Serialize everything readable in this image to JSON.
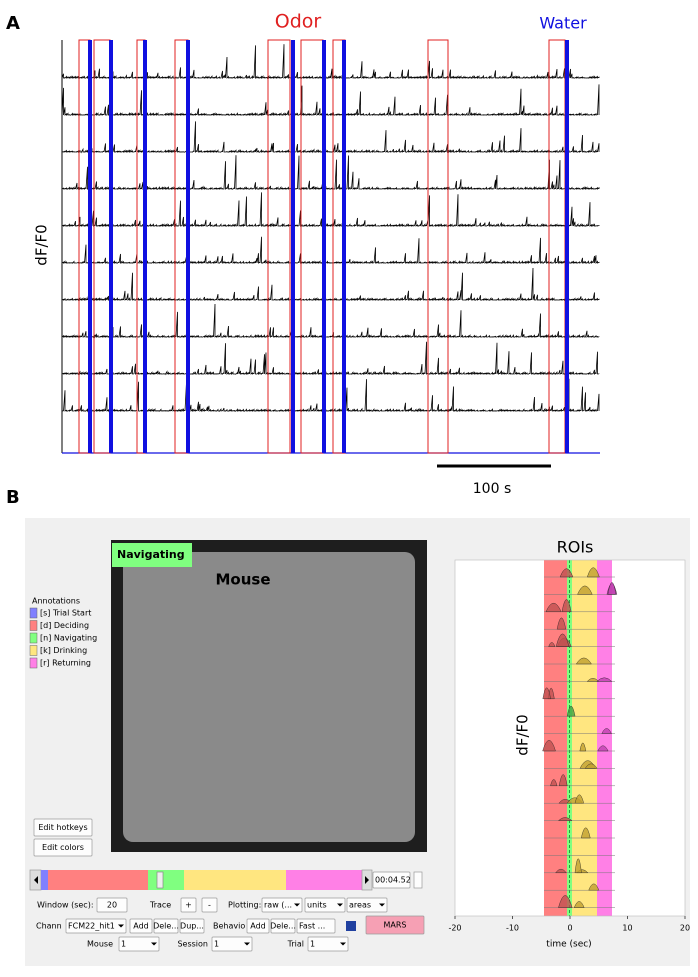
{
  "panel_a": {
    "label": "A",
    "odor_label": "Odor",
    "water_label": "Water",
    "y_label": "dF/F0",
    "scale_bar": "100 s"
  },
  "panel_b": {
    "label": "B",
    "video": {
      "state": "Navigating",
      "subject": "Mouse"
    },
    "annotations": {
      "title": "Annotations",
      "items": [
        {
          "key": "[s] Trial Start",
          "color": "#8080ff"
        },
        {
          "key": "[d] Deciding",
          "color": "#ff8080"
        },
        {
          "key": "[n] Navigating",
          "color": "#80ff80"
        },
        {
          "key": "[k] Drinking",
          "color": "#ffe680"
        },
        {
          "key": "[r] Returning",
          "color": "#ff80e6"
        }
      ]
    },
    "buttons": {
      "edit_hotkeys": "Edit hotkeys",
      "edit_colors": "Edit colors"
    },
    "timeline": {
      "time": "00:04.52"
    },
    "controls": {
      "window_label": "Window (sec):",
      "window_value": "20",
      "trace": "Trace",
      "plus": "+",
      "minus": "-",
      "plotting": "Plotting:",
      "plot_mode": "raw (...",
      "units": "units",
      "areas": "areas",
      "channel": "Chann",
      "channel_value": "FCM22_hit1",
      "add": "Add",
      "delete": "Dele...",
      "dup": "Dup...",
      "behavior": "Behavio",
      "add2": "Add",
      "delete2": "Dele...",
      "fast": "Fast ...",
      "mars": "MARS",
      "mouse": "Mouse",
      "mouse_value": "1",
      "session": "Session",
      "session_value": "1",
      "trial": "Trial",
      "trial_value": "1"
    },
    "roi_plot": {
      "title": "ROIs",
      "y_label": "dF/F0",
      "x_label": "time (sec)",
      "xlim": [
        -20,
        20
      ],
      "xticks": [
        -20,
        -10,
        0,
        10,
        20
      ]
    }
  }
}
